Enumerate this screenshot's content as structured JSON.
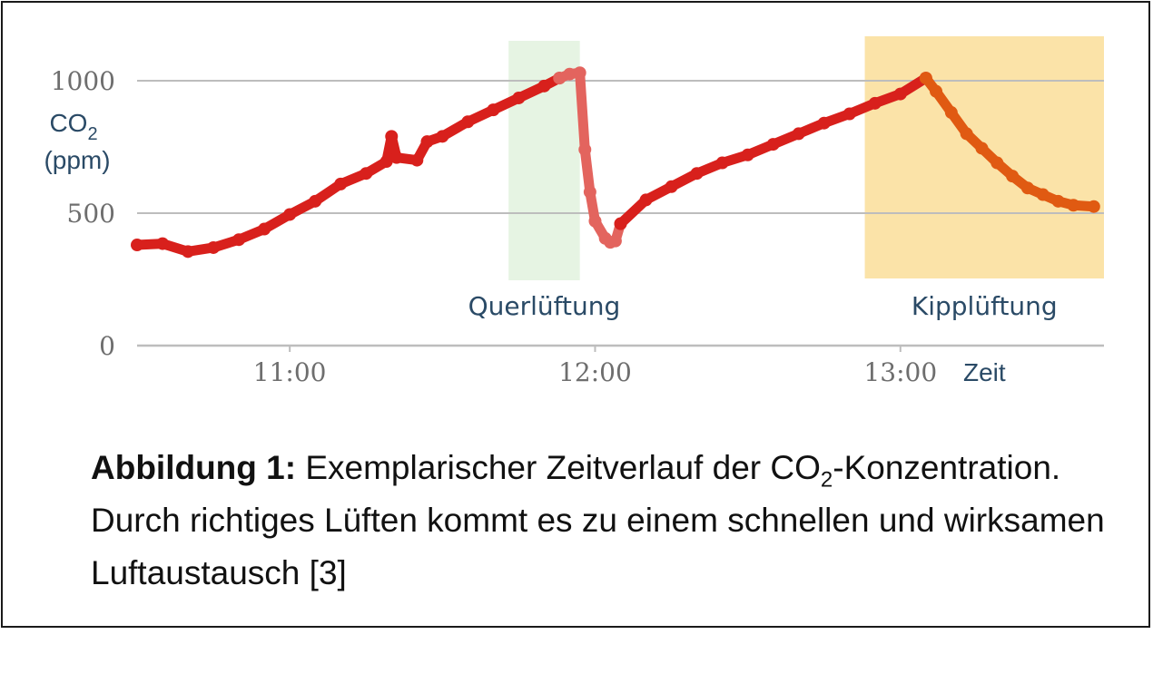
{
  "caption": {
    "label": "Abbildung 1:",
    "text_before_sub": " Exemplarischer Zeitverlauf der CO",
    "subscript": "2",
    "text_after_sub": "-Konzentration. Durch richtiges Lüften kommt es zu einem schnellen und wirksamen Luftaustausch [3]"
  },
  "colors": {
    "line_main": "#d8201c",
    "line_venting": "#e3645e",
    "line_tilt": "#e05a12",
    "band_quer": "#e6f4e3",
    "band_kipp": "#fbe3a8",
    "grid": "#bdbdbd",
    "text_axis": "#6e6e6e",
    "text_label": "#2a4a66"
  },
  "chart_data": {
    "type": "line",
    "ylabel_line1": "CO",
    "ylabel_sub": "2",
    "ylabel_line2": "(ppm)",
    "xlabel": "Zeit",
    "ylim": [
      0,
      1000
    ],
    "yticks": [
      {
        "value": 0,
        "label": "0"
      },
      {
        "value": 500,
        "label": "500"
      },
      {
        "value": 1000,
        "label": "1000"
      }
    ],
    "xlim": [
      "10:30",
      "13:40"
    ],
    "xticks": [
      {
        "value": "11:00",
        "label": "11:00"
      },
      {
        "value": "12:00",
        "label": "12:00"
      },
      {
        "value": "13:00",
        "label": "13:00"
      }
    ],
    "grid": "horizontal at y ticks",
    "bands": [
      {
        "label": "Querlüftung",
        "from": "11:43",
        "to": "11:57",
        "color": "band_quer"
      },
      {
        "label": "Kipplüftung",
        "from": "12:53",
        "to": "13:40",
        "color": "band_kipp"
      }
    ],
    "series": [
      {
        "color": "line_main",
        "points": [
          [
            "10:30",
            380
          ],
          [
            "10:35",
            385
          ],
          [
            "10:40",
            355
          ],
          [
            "10:45",
            370
          ],
          [
            "10:50",
            400
          ],
          [
            "10:55",
            440
          ],
          [
            "11:00",
            495
          ],
          [
            "11:05",
            545
          ],
          [
            "11:10",
            610
          ],
          [
            "11:15",
            650
          ],
          [
            "11:19",
            695
          ],
          [
            "11:20",
            790
          ],
          [
            "11:21",
            710
          ],
          [
            "11:25",
            700
          ],
          [
            "11:27",
            770
          ],
          [
            "11:30",
            790
          ],
          [
            "11:35",
            845
          ],
          [
            "11:40",
            890
          ],
          [
            "11:45",
            935
          ],
          [
            "11:50",
            980
          ],
          [
            "11:53",
            1010
          ]
        ]
      },
      {
        "color": "line_venting",
        "points": [
          [
            "11:53",
            1010
          ],
          [
            "11:55",
            1025
          ],
          [
            "11:57",
            1030
          ],
          [
            "11:58",
            740
          ],
          [
            "11:59",
            580
          ],
          [
            "12:00",
            470
          ],
          [
            "12:02",
            405
          ],
          [
            "12:03",
            390
          ],
          [
            "12:04",
            395
          ],
          [
            "12:05",
            460
          ]
        ]
      },
      {
        "color": "line_main",
        "points": [
          [
            "12:05",
            460
          ],
          [
            "12:10",
            550
          ],
          [
            "12:15",
            600
          ],
          [
            "12:20",
            650
          ],
          [
            "12:25",
            690
          ],
          [
            "12:30",
            720
          ],
          [
            "12:35",
            760
          ],
          [
            "12:40",
            800
          ],
          [
            "12:45",
            840
          ],
          [
            "12:50",
            875
          ],
          [
            "12:55",
            915
          ],
          [
            "13:00",
            950
          ],
          [
            "13:05",
            1010
          ]
        ]
      },
      {
        "color": "line_tilt",
        "points": [
          [
            "13:05",
            1010
          ],
          [
            "13:07",
            960
          ],
          [
            "13:10",
            880
          ],
          [
            "13:13",
            800
          ],
          [
            "13:16",
            745
          ],
          [
            "13:19",
            690
          ],
          [
            "13:22",
            640
          ],
          [
            "13:25",
            595
          ],
          [
            "13:28",
            570
          ],
          [
            "13:31",
            545
          ],
          [
            "13:34",
            530
          ],
          [
            "13:38",
            525
          ]
        ]
      }
    ]
  }
}
